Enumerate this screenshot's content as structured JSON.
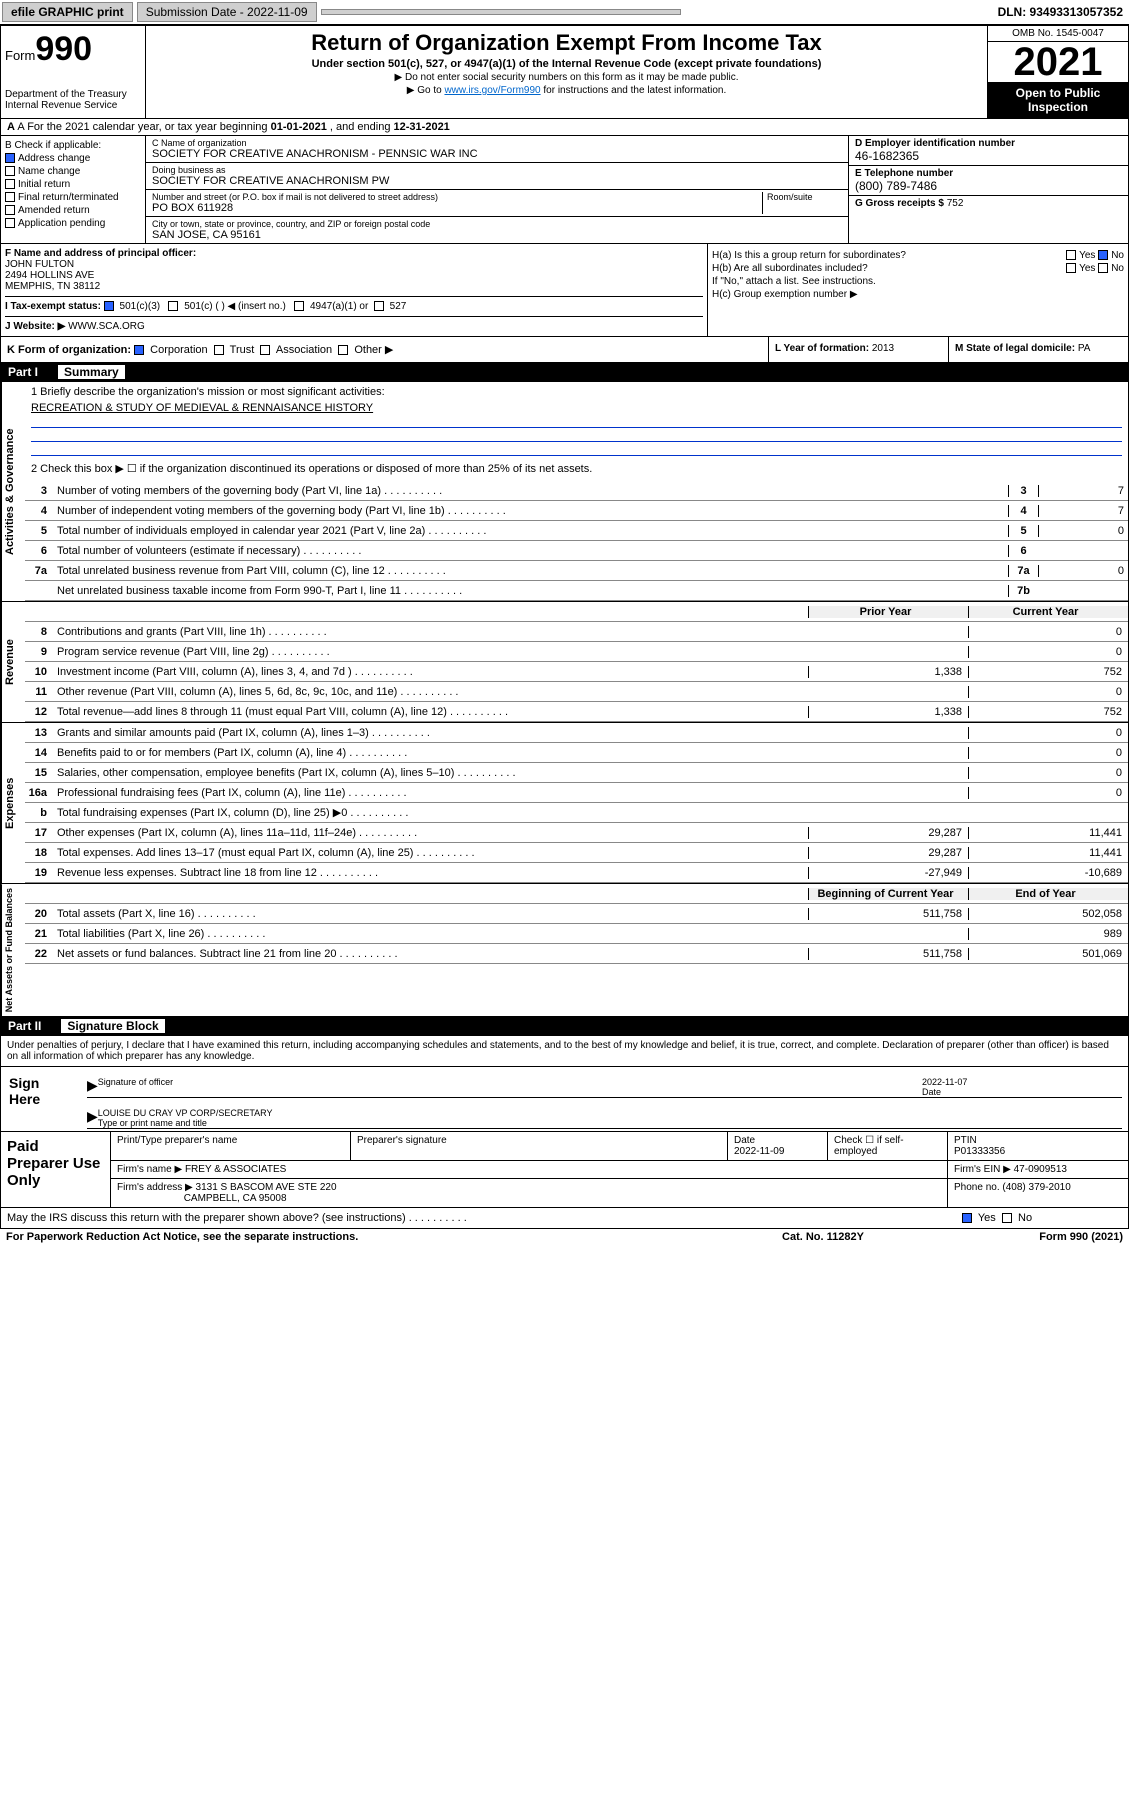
{
  "topbar": {
    "efile": "efile GRAPHIC print",
    "submission_label": "Submission Date - 2022-11-09",
    "dln": "DLN: 93493313057352"
  },
  "header": {
    "form_prefix": "Form",
    "form_num": "990",
    "dept": "Department of the Treasury\nInternal Revenue Service",
    "title": "Return of Organization Exempt From Income Tax",
    "subtitle": "Under section 501(c), 527, or 4947(a)(1) of the Internal Revenue Code (except private foundations)",
    "note1": "▶ Do not enter social security numbers on this form as it may be made public.",
    "note2_pre": "▶ Go to ",
    "note2_link": "www.irs.gov/Form990",
    "note2_post": " for instructions and the latest information.",
    "omb": "OMB No. 1545-0047",
    "year": "2021",
    "inspection": "Open to Public Inspection"
  },
  "row_a": {
    "text_pre": "A For the 2021 calendar year, or tax year beginning ",
    "begin": "01-01-2021",
    "mid": " , and ending ",
    "end": "12-31-2021"
  },
  "section_b": {
    "header": "B Check if applicable:",
    "items": [
      {
        "label": "Address change",
        "checked": true
      },
      {
        "label": "Name change",
        "checked": false
      },
      {
        "label": "Initial return",
        "checked": false
      },
      {
        "label": "Final return/terminated",
        "checked": false
      },
      {
        "label": "Amended return",
        "checked": false
      },
      {
        "label": "Application pending",
        "checked": false
      }
    ]
  },
  "section_c": {
    "name_label": "C Name of organization",
    "name": "SOCIETY FOR CREATIVE ANACHRONISM - PENNSIC WAR INC",
    "dba_label": "Doing business as",
    "dba": "SOCIETY FOR CREATIVE ANACHRONISM PW",
    "addr_label": "Number and street (or P.O. box if mail is not delivered to street address)",
    "room_label": "Room/suite",
    "addr": "PO BOX 611928",
    "city_label": "City or town, state or province, country, and ZIP or foreign postal code",
    "city": "SAN JOSE, CA  95161"
  },
  "section_de": {
    "d_label": "D Employer identification number",
    "d_val": "46-1682365",
    "e_label": "E Telephone number",
    "e_val": "(800) 789-7486",
    "g_label": "G Gross receipts $",
    "g_val": "752"
  },
  "section_f": {
    "label": "F Name and address of principal officer:",
    "name": "JOHN FULTON",
    "addr1": "2494 HOLLINS AVE",
    "addr2": "MEMPHIS, TN  38112"
  },
  "section_h": {
    "ha": "H(a)  Is this a group return for subordinates?",
    "hb": "H(b)  Are all subordinates included?",
    "hb_note": "If \"No,\" attach a list. See instructions.",
    "hc": "H(c)  Group exemption number ▶",
    "yes": "Yes",
    "no": "No"
  },
  "row_i": {
    "label": "I   Tax-exempt status:",
    "opt1": "501(c)(3)",
    "opt2": "501(c) (  ) ◀ (insert no.)",
    "opt3": "4947(a)(1) or",
    "opt4": "527"
  },
  "row_j": {
    "label": "J   Website: ▶",
    "val": "WWW.SCA.ORG"
  },
  "row_k": {
    "label": "K Form of organization:",
    "opts": [
      "Corporation",
      "Trust",
      "Association",
      "Other ▶"
    ]
  },
  "row_l": {
    "label": "L Year of formation:",
    "val": "2013"
  },
  "row_m": {
    "label": "M State of legal domicile:",
    "val": "PA"
  },
  "part1": {
    "header_part": "Part I",
    "header_title": "Summary",
    "mission_label": "1   Briefly describe the organization's mission or most significant activities:",
    "mission": "RECREATION & STUDY OF MEDIEVAL & RENNAISANCE HISTORY",
    "line2": "2   Check this box ▶ ☐  if the organization discontinued its operations or disposed of more than 25% of its net assets.",
    "rows_gov": [
      {
        "n": "3",
        "txt": "Number of voting members of the governing body (Part VI, line 1a)",
        "box": "3",
        "val": "7"
      },
      {
        "n": "4",
        "txt": "Number of independent voting members of the governing body (Part VI, line 1b)",
        "box": "4",
        "val": "7"
      },
      {
        "n": "5",
        "txt": "Total number of individuals employed in calendar year 2021 (Part V, line 2a)",
        "box": "5",
        "val": "0"
      },
      {
        "n": "6",
        "txt": "Total number of volunteers (estimate if necessary)",
        "box": "6",
        "val": ""
      },
      {
        "n": "7a",
        "txt": "Total unrelated business revenue from Part VIII, column (C), line 12",
        "box": "7a",
        "val": "0"
      },
      {
        "n": "",
        "txt": "Net unrelated business taxable income from Form 990-T, Part I, line 11",
        "box": "7b",
        "val": ""
      }
    ],
    "col_prior": "Prior Year",
    "col_curr": "Current Year",
    "rows_rev": [
      {
        "n": "8",
        "txt": "Contributions and grants (Part VIII, line 1h)",
        "prior": "",
        "curr": "0"
      },
      {
        "n": "9",
        "txt": "Program service revenue (Part VIII, line 2g)",
        "prior": "",
        "curr": "0"
      },
      {
        "n": "10",
        "txt": "Investment income (Part VIII, column (A), lines 3, 4, and 7d )",
        "prior": "1,338",
        "curr": "752"
      },
      {
        "n": "11",
        "txt": "Other revenue (Part VIII, column (A), lines 5, 6d, 8c, 9c, 10c, and 11e)",
        "prior": "",
        "curr": "0"
      },
      {
        "n": "12",
        "txt": "Total revenue—add lines 8 through 11 (must equal Part VIII, column (A), line 12)",
        "prior": "1,338",
        "curr": "752"
      }
    ],
    "rows_exp": [
      {
        "n": "13",
        "txt": "Grants and similar amounts paid (Part IX, column (A), lines 1–3)",
        "prior": "",
        "curr": "0"
      },
      {
        "n": "14",
        "txt": "Benefits paid to or for members (Part IX, column (A), line 4)",
        "prior": "",
        "curr": "0"
      },
      {
        "n": "15",
        "txt": "Salaries, other compensation, employee benefits (Part IX, column (A), lines 5–10)",
        "prior": "",
        "curr": "0"
      },
      {
        "n": "16a",
        "txt": "Professional fundraising fees (Part IX, column (A), line 11e)",
        "prior": "",
        "curr": "0"
      },
      {
        "n": "b",
        "txt": "Total fundraising expenses (Part IX, column (D), line 25) ▶0",
        "prior": "shaded",
        "curr": "shaded"
      },
      {
        "n": "17",
        "txt": "Other expenses (Part IX, column (A), lines 11a–11d, 11f–24e)",
        "prior": "29,287",
        "curr": "11,441"
      },
      {
        "n": "18",
        "txt": "Total expenses. Add lines 13–17 (must equal Part IX, column (A), line 25)",
        "prior": "29,287",
        "curr": "11,441"
      },
      {
        "n": "19",
        "txt": "Revenue less expenses. Subtract line 18 from line 12",
        "prior": "-27,949",
        "curr": "-10,689"
      }
    ],
    "col_begin": "Beginning of Current Year",
    "col_end": "End of Year",
    "rows_net": [
      {
        "n": "20",
        "txt": "Total assets (Part X, line 16)",
        "prior": "511,758",
        "curr": "502,058"
      },
      {
        "n": "21",
        "txt": "Total liabilities (Part X, line 26)",
        "prior": "",
        "curr": "989"
      },
      {
        "n": "22",
        "txt": "Net assets or fund balances. Subtract line 21 from line 20",
        "prior": "511,758",
        "curr": "501,069"
      }
    ],
    "side_gov": "Activities & Governance",
    "side_rev": "Revenue",
    "side_exp": "Expenses",
    "side_net": "Net Assets or Fund Balances"
  },
  "part2": {
    "header_part": "Part II",
    "header_title": "Signature Block",
    "penalty": "Under penalties of perjury, I declare that I have examined this return, including accompanying schedules and statements, and to the best of my knowledge and belief, it is true, correct, and complete. Declaration of preparer (other than officer) is based on all information of which preparer has any knowledge.",
    "sign_here": "Sign Here",
    "sig_officer": "Signature of officer",
    "sig_date": "Date",
    "sig_date_val": "2022-11-07",
    "sig_name": "LOUISE DU CRAY VP CORP/SECRETARY",
    "sig_name_label": "Type or print name and title",
    "paid_label": "Paid Preparer Use Only",
    "paid_h1": "Print/Type preparer's name",
    "paid_h2": "Preparer's signature",
    "paid_h3": "Date",
    "paid_h3_val": "2022-11-09",
    "paid_h4": "Check ☐ if self-employed",
    "paid_h5": "PTIN",
    "paid_h5_val": "P01333356",
    "firm_name_label": "Firm's name    ▶",
    "firm_name": "FREY & ASSOCIATES",
    "firm_ein_label": "Firm's EIN ▶",
    "firm_ein": "47-0909513",
    "firm_addr_label": "Firm's address ▶",
    "firm_addr": "3131 S BASCOM AVE STE 220",
    "firm_city": "CAMPBELL, CA  95008",
    "firm_phone_label": "Phone no.",
    "firm_phone": "(408) 379-2010",
    "discuss": "May the IRS discuss this return with the preparer shown above? (see instructions)",
    "yes": "Yes",
    "no": "No"
  },
  "footer": {
    "paperwork": "For Paperwork Reduction Act Notice, see the separate instructions.",
    "cat": "Cat. No. 11282Y",
    "form": "Form 990 (2021)"
  }
}
